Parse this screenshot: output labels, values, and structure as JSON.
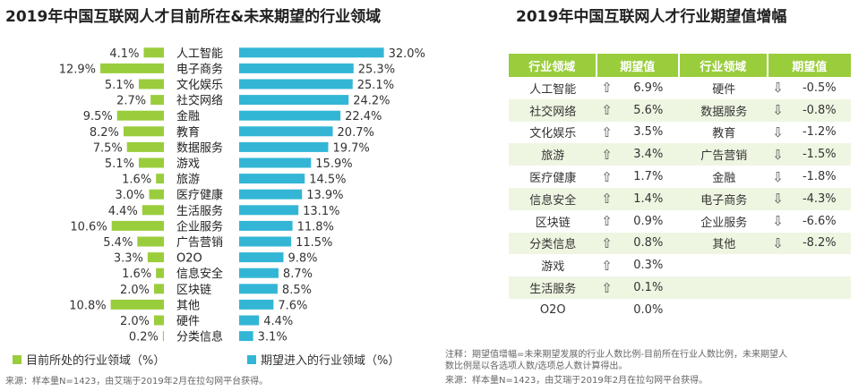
{
  "left_title": "2019年中国互联网人才目前所在&未来期望的行业领域",
  "right_title": "2019年中国互联网人才行业期望值增幅",
  "chart_data": {
    "type": "bar",
    "orientation": "horizontal-diverging",
    "categories": [
      "人工智能",
      "电子商务",
      "文化娱乐",
      "社交网络",
      "金融",
      "教育",
      "数据服务",
      "游戏",
      "旅游",
      "医疗健康",
      "生活服务",
      "企业服务",
      "广告营销",
      "O2O",
      "信息安全",
      "区块链",
      "其他",
      "硬件",
      "分类信息"
    ],
    "series": [
      {
        "name": "目前所处的行业领域（%）",
        "color": "#9acd3c",
        "direction": "left",
        "values": [
          4.1,
          12.9,
          5.1,
          2.7,
          9.5,
          8.2,
          7.5,
          5.1,
          1.6,
          3.0,
          4.4,
          10.6,
          5.4,
          3.3,
          1.6,
          2.0,
          10.8,
          2.0,
          0.2
        ]
      },
      {
        "name": "期望进入的行业领域（%）",
        "color": "#33b6d6",
        "direction": "right",
        "values": [
          32.0,
          25.3,
          25.1,
          24.2,
          22.4,
          20.7,
          19.7,
          15.9,
          14.5,
          13.9,
          13.1,
          11.8,
          11.5,
          9.8,
          8.7,
          8.5,
          7.6,
          4.4,
          3.1
        ]
      }
    ],
    "left_labels": [
      "4.1%",
      "12.9%",
      "5.1%",
      "2.7%",
      "9.5%",
      "8.2%",
      "7.5%",
      "5.1%",
      "1.6%",
      "3.0%",
      "4.4%",
      "10.6%",
      "5.4%",
      "3.3%",
      "1.6%",
      "2.0%",
      "10.8%",
      "2.0%",
      "0.2%"
    ],
    "right_labels": [
      "32.0%",
      "25.3%",
      "25.1%",
      "24.2%",
      "22.4%",
      "20.7%",
      "19.7%",
      "15.9%",
      "14.5%",
      "13.9%",
      "13.1%",
      "11.8%",
      "11.5%",
      "9.8%",
      "8.7%",
      "8.5%",
      "7.6%",
      "4.4%",
      "3.1%"
    ]
  },
  "legend": {
    "current": "目前所处的行业领域（%）",
    "expected": "期望进入的行业领域（%）"
  },
  "left_source": "来源：样本量N=1423，由艾瑞于2019年2月在拉勾网平台获得。",
  "table": {
    "headers": [
      "行业领域",
      "期望值",
      "行业领域",
      "期望值"
    ],
    "rows": [
      {
        "ind1": "人工智能",
        "a1": "⇧",
        "v1": "6.9%",
        "ind2": "硬件",
        "a2": "⇩",
        "v2": "-0.5%"
      },
      {
        "ind1": "社交网络",
        "a1": "⇧",
        "v1": "5.6%",
        "ind2": "数据服务",
        "a2": "⇩",
        "v2": "-0.8%"
      },
      {
        "ind1": "文化娱乐",
        "a1": "⇧",
        "v1": "3.5%",
        "ind2": "教育",
        "a2": "⇩",
        "v2": "-1.2%"
      },
      {
        "ind1": "旅游",
        "a1": "⇧",
        "v1": "3.4%",
        "ind2": "广告营销",
        "a2": "⇩",
        "v2": "-1.5%"
      },
      {
        "ind1": "医疗健康",
        "a1": "⇧",
        "v1": "1.7%",
        "ind2": "金融",
        "a2": "⇩",
        "v2": "-1.8%"
      },
      {
        "ind1": "信息安全",
        "a1": "⇧",
        "v1": "1.4%",
        "ind2": "电子商务",
        "a2": "⇩",
        "v2": "-4.3%"
      },
      {
        "ind1": "区块链",
        "a1": "⇧",
        "v1": "0.9%",
        "ind2": "企业服务",
        "a2": "⇩",
        "v2": "-6.6%"
      },
      {
        "ind1": "分类信息",
        "a1": "⇧",
        "v1": "0.8%",
        "ind2": "其他",
        "a2": "⇩",
        "v2": "-8.2%"
      },
      {
        "ind1": "游戏",
        "a1": "⇧",
        "v1": "0.3%",
        "ind2": "",
        "a2": "",
        "v2": ""
      },
      {
        "ind1": "生活服务",
        "a1": "⇧",
        "v1": "0.1%",
        "ind2": "",
        "a2": "",
        "v2": ""
      },
      {
        "ind1": "O2O",
        "a1": "",
        "v1": "0.0%",
        "ind2": "",
        "a2": "",
        "v2": ""
      }
    ]
  },
  "right_note_1": "注释：期望值增幅=未来期望发展的行业人数比例-目前所在行业人数比例，未来期望人",
  "right_note_2": "数比例是以各选项人数/选项总人数计算得出。",
  "right_source": "来源：样本量N=1423，由艾瑞于2019年2月在拉勾网平台获得。"
}
